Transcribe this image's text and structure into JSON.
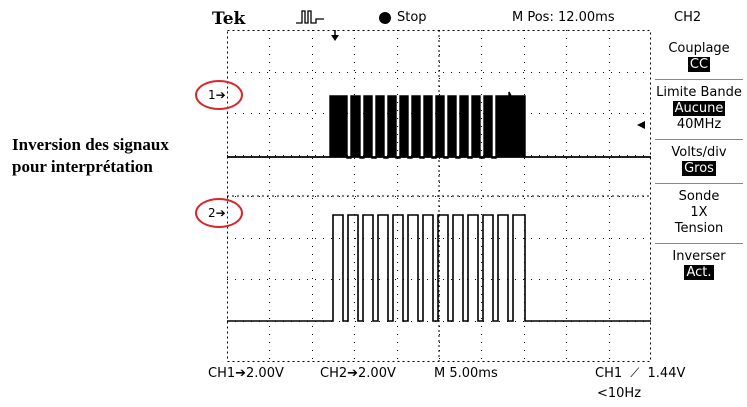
{
  "header": {
    "brand": "Tek",
    "trigger_icon": "pulse-trigger-icon",
    "run_status": "Stop",
    "m_pos": "M Pos: 12.00ms",
    "channel": "CH2"
  },
  "markers": {
    "ch1": "1",
    "ch2": "2"
  },
  "annotation": {
    "line1": "Inversion des signaux",
    "line2": "pour interprétation"
  },
  "menu": {
    "coupling": {
      "label": "Couplage",
      "value": "CC"
    },
    "bandwidth": {
      "label": "Limite Bande",
      "value": "Aucune",
      "sub": "40MHz"
    },
    "volts_div": {
      "label": "Volts/div",
      "value": "Gros"
    },
    "probe": {
      "label": "Sonde",
      "value1": "1X",
      "value2": "Tension"
    },
    "invert": {
      "label": "Inverser",
      "value": "Act."
    }
  },
  "footer": {
    "ch1_scale": "CH1",
    "ch1_value": "2.00V",
    "ch2_scale": "CH2",
    "ch2_value": "2.00V",
    "timebase": "M 5.00ms",
    "trigger_source": "CH1",
    "trigger_level": "1.44V",
    "frequency": "<10Hz"
  },
  "colors": {
    "trace": "#000000",
    "grid": "#000000",
    "highlight": "#d8262b"
  }
}
